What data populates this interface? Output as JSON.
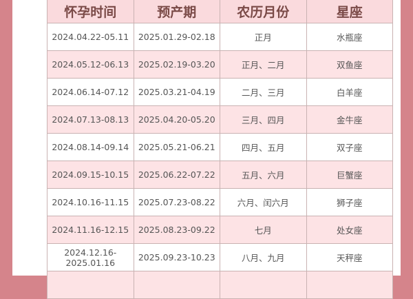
{
  "headers": [
    "怀孕时间",
    "预产期",
    "农历月份",
    "星座"
  ],
  "rows": [
    [
      "2024.04.22-05.11",
      "2025.01.29-02.18",
      "正月",
      "水瓶座"
    ],
    [
      "2024.05.12-06.13",
      "2025.02.19-03.20",
      "正月、二月",
      "双鱼座"
    ],
    [
      "2024.06.14-07.12",
      "2025.03.21-04.19",
      "二月、三月",
      "白羊座"
    ],
    [
      "2024.07.13-08.13",
      "2025.04.20-05.20",
      "三月、四月",
      "金牛座"
    ],
    [
      "2024.08.14-09.14",
      "2025.05.21-06.21",
      "四月、五月",
      "双子座"
    ],
    [
      "2024.09.15-10.15",
      "2025.06.22-07.22",
      "五月、六月",
      "巨蟹座"
    ],
    [
      "2024.10.16-11.15",
      "2025.07.23-08.22",
      "六月、闰六月",
      "狮子座"
    ],
    [
      "2024.11.16-12.15",
      "2025.08.23-09.22",
      "七月",
      "处女座"
    ],
    [
      "2024.12.16-2025.01.16",
      "2025.09.23-10.23",
      "八月、九月",
      "天秤座"
    ],
    [
      "",
      "",
      "",
      ""
    ]
  ],
  "colors": {
    "frame": "#d5848b",
    "header_bg": "#fadadd",
    "alt_row": "#fde3e5",
    "header_text": "#7a4a47"
  }
}
